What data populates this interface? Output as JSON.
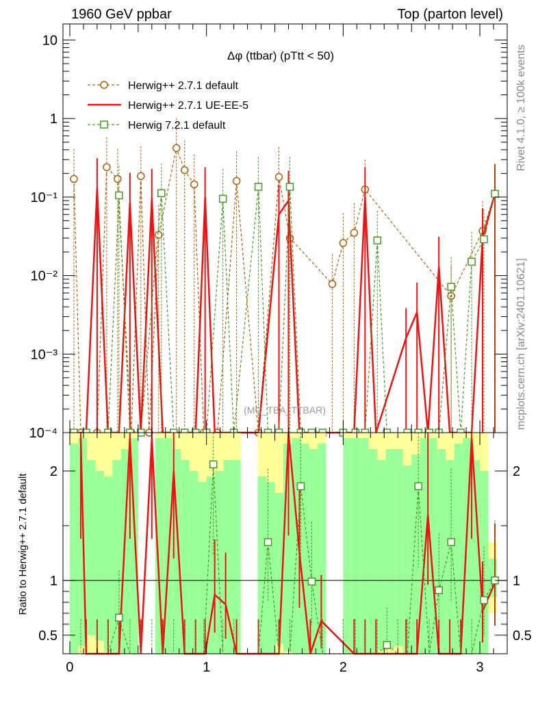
{
  "header": {
    "left": "1960 GeV ppbar",
    "right": "Top (parton level)"
  },
  "side_labels": {
    "rivet": "Rivet 4.1.0, ≥ 100k events",
    "mcplots": "mcplots.cern.ch [arXiv:2401.10621]"
  },
  "chart_data": [
    {
      "type": "line",
      "title": "Δφ (ttbar) (pTtt < 50)",
      "watermark": "(MC_TBA_TTBAR)",
      "yscale": "log",
      "xlim": [
        -0.05,
        3.2
      ],
      "ylim": [
        0.0001,
        16
      ],
      "y_ticks": [
        0.0001,
        0.001,
        0.01,
        0.1,
        1,
        10
      ],
      "y_tick_labels": [
        "10⁻⁴",
        "10⁻³",
        "10⁻²",
        "10⁻¹",
        "1",
        "10"
      ],
      "legend_position": "top-left",
      "series": [
        {
          "name": "Herwig++ 2.7.1 default",
          "color": "#b35900",
          "style": "dashed",
          "marker": "circle",
          "x": [
            0.03,
            0.08,
            0.2,
            0.27,
            0.35,
            0.45,
            0.52,
            0.58,
            0.65,
            0.78,
            0.84,
            0.91,
            0.98,
            1.08,
            1.22,
            1.38,
            1.53,
            1.61,
            1.92,
            2.0,
            2.08,
            2.16,
            2.79,
            3.02,
            3.11
          ],
          "y": [
            0.17,
            0.0001,
            0.0001,
            0.24,
            0.17,
            0.0001,
            0.185,
            0.0001,
            0.033,
            0.42,
            0.22,
            0.145,
            0.0001,
            0.0001,
            0.16,
            0.0001,
            0.18,
            0.03,
            0.0078,
            0.026,
            0.035,
            0.125,
            0.0055,
            0.037,
            0.11
          ]
        },
        {
          "name": "Herwig++ 2.7.1 UE-EE-5",
          "color": "#ee1111",
          "style": "solid",
          "marker": "none",
          "x": [
            0.03,
            0.12,
            0.2,
            0.28,
            0.36,
            0.44,
            0.52,
            0.6,
            0.68,
            0.76,
            0.84,
            0.92,
            0.99,
            1.06,
            1.14,
            1.22,
            1.38,
            1.53,
            1.6,
            1.68,
            1.76,
            1.84,
            2.08,
            2.16,
            2.24,
            2.46,
            2.54,
            2.62,
            2.7,
            2.78,
            2.86,
            2.94,
            3.02,
            3.11
          ],
          "y": [
            0.0001,
            0.0001,
            0.13,
            0.0001,
            0.0001,
            0.085,
            0.0001,
            0.095,
            0.0001,
            0.0001,
            0.0001,
            0.0001,
            0.1,
            0.0001,
            0.0001,
            0.0001,
            0.0001,
            0.06,
            0.09,
            0.0001,
            0.0001,
            0.0001,
            0.0001,
            0.1,
            0.0001,
            0.0016,
            0.0034,
            0.0001,
            0.013,
            0.0001,
            0.0001,
            0.0001,
            0.03,
            0.11
          ]
        },
        {
          "name": "Herwig 7.2.1 default",
          "color": "#449922",
          "style": "dashed",
          "marker": "square",
          "x": [
            0.03,
            0.12,
            0.28,
            0.36,
            0.44,
            0.52,
            0.67,
            0.76,
            0.84,
            0.92,
            1.0,
            1.12,
            1.2,
            1.38,
            1.45,
            1.53,
            1.61,
            1.69,
            1.77,
            1.85,
            2.0,
            2.09,
            2.16,
            2.25,
            2.32,
            2.47,
            2.55,
            2.63,
            2.7,
            2.79,
            2.86,
            2.94,
            3.03,
            3.11
          ],
          "y": [
            0.0001,
            0.0001,
            0.0001,
            0.105,
            0.0001,
            0.0001,
            0.112,
            0.0001,
            0.0001,
            0.0001,
            0.0001,
            0.095,
            0.0001,
            0.135,
            0.0001,
            0.0001,
            0.135,
            0.0001,
            0.0001,
            0.0001,
            0.0001,
            0.0001,
            0.0001,
            0.028,
            0.0001,
            0.0001,
            0.0001,
            0.0001,
            0.0001,
            0.0072,
            0.0001,
            0.015,
            0.029,
            0.11
          ]
        }
      ]
    },
    {
      "type": "line",
      "ylabel": "Ratio to Herwig++ 2.7.1 default",
      "xlim": [
        -0.05,
        3.2
      ],
      "ylim": [
        0.33,
        2.35
      ],
      "x_ticks": [
        0,
        1,
        2,
        3
      ],
      "y_ticks": [
        0.5,
        1,
        2
      ],
      "reference_line": 1,
      "bands": {
        "x_edges": [
          0.0,
          0.0625,
          0.125,
          0.1875,
          0.25,
          0.3125,
          0.375,
          0.4375,
          0.5,
          0.5625,
          0.625,
          0.6875,
          0.75,
          0.8125,
          0.875,
          0.9375,
          1.0,
          1.0625,
          1.125,
          1.1875,
          1.25,
          1.3125,
          1.375,
          1.4375,
          1.5,
          1.5625,
          1.625,
          1.6875,
          1.75,
          1.8125,
          1.875,
          1.9375,
          2.0,
          2.0625,
          2.125,
          2.1875,
          2.25,
          2.3125,
          2.375,
          2.4375,
          2.5,
          2.5625,
          2.625,
          2.6875,
          2.75,
          2.8125,
          2.875,
          2.9375,
          3.0,
          3.0625,
          3.125
        ],
        "inner_hi": [
          2.25,
          2.3,
          2.1,
          2.0,
          1.95,
          2.1,
          2.2,
          2.3,
          0,
          0,
          2.3,
          2.3,
          2.2,
          2.1,
          2.0,
          1.9,
          1.95,
          2.0,
          2.1,
          2.1,
          0,
          0,
          1.95,
          1.9,
          1.8,
          2.25,
          2.3,
          2.25,
          2.2,
          2.25,
          0,
          0,
          2.3,
          2.3,
          2.3,
          2.2,
          2.1,
          2.2,
          2.2,
          2.05,
          2.15,
          2.3,
          2.3,
          2.2,
          2.1,
          2.25,
          2.3,
          2.1,
          2.0,
          1.2,
          0
        ],
        "inner_lo": [
          0.33,
          0.4,
          0.5,
          0.45,
          0.35,
          0.33,
          0.33,
          0.33,
          0,
          0,
          0.33,
          0.33,
          0.33,
          0.33,
          0.33,
          0.33,
          0.33,
          0.33,
          0.33,
          0.33,
          0,
          0,
          0.33,
          0.33,
          0.42,
          0.35,
          0.33,
          0.33,
          0.33,
          0.33,
          0,
          0,
          0.33,
          0.33,
          0.33,
          0.33,
          0.36,
          0.38,
          0.4,
          0.33,
          0.33,
          0.33,
          0.33,
          0.33,
          0.33,
          0.33,
          0.33,
          0.33,
          0.33,
          0.85,
          0
        ],
        "outer_hi": [
          2.35,
          2.35,
          2.35,
          2.35,
          2.35,
          2.35,
          2.35,
          2.35,
          0,
          0,
          2.35,
          2.35,
          2.35,
          2.35,
          2.35,
          2.35,
          2.35,
          2.35,
          2.35,
          2.35,
          0,
          0,
          2.35,
          2.35,
          2.35,
          2.35,
          2.35,
          2.35,
          2.35,
          2.35,
          0,
          0,
          2.35,
          2.35,
          2.35,
          2.35,
          2.35,
          2.35,
          2.35,
          2.35,
          2.35,
          2.35,
          2.35,
          2.35,
          2.35,
          2.35,
          2.35,
          2.35,
          2.35,
          1.35,
          0
        ],
        "outer_lo": [
          0.33,
          0.33,
          0.33,
          0.33,
          0.33,
          0.33,
          0.33,
          0.33,
          0,
          0,
          0.33,
          0.33,
          0.33,
          0.33,
          0.33,
          0.33,
          0.33,
          0.33,
          0.33,
          0.33,
          0,
          0,
          0.33,
          0.33,
          0.33,
          0.33,
          0.33,
          0.33,
          0.33,
          0.33,
          0,
          0,
          0.33,
          0.33,
          0.33,
          0.33,
          0.33,
          0.33,
          0.33,
          0.33,
          0.33,
          0.33,
          0.33,
          0.33,
          0.33,
          0.33,
          0.33,
          0.33,
          0.33,
          0.7,
          0
        ],
        "inner_color": "#99ff99",
        "outer_color": "#ffff99"
      },
      "series": [
        {
          "name": "Herwig++ 2.7.1 UE-EE-5",
          "color": "#ee1111",
          "x": [
            0.08,
            0.12,
            0.2,
            0.28,
            0.36,
            0.44,
            0.52,
            0.6,
            0.68,
            0.76,
            0.84,
            0.92,
            0.99,
            1.06,
            1.14,
            1.22,
            1.38,
            1.53,
            1.6,
            1.68,
            1.76,
            1.84,
            2.08,
            2.16,
            2.24,
            2.46,
            2.54,
            2.62,
            2.7,
            2.78,
            2.86,
            2.94,
            3.02,
            3.11
          ],
          "y": [
            2.3,
            0.33,
            0.33,
            0.33,
            0.33,
            2.3,
            0.33,
            2.3,
            0.33,
            2.0,
            0.33,
            0.33,
            0.33,
            0.87,
            0.78,
            0.33,
            0.33,
            0.33,
            2.35,
            1.25,
            0.33,
            0.63,
            0.33,
            0.33,
            0.33,
            0.33,
            0.33,
            1.6,
            0.33,
            0.33,
            0.33,
            2.3,
            0.72,
            0.98
          ]
        },
        {
          "name": "Herwig 7.2.1 default",
          "color": "#449922",
          "x": [
            0.08,
            0.2,
            0.28,
            0.36,
            0.44,
            0.52,
            0.6,
            0.68,
            0.76,
            0.84,
            0.92,
            0.98,
            1.05,
            1.12,
            1.2,
            1.38,
            1.45,
            1.53,
            1.61,
            1.69,
            1.77,
            1.85,
            2.0,
            2.09,
            2.16,
            2.25,
            2.32,
            2.4,
            2.47,
            2.55,
            2.63,
            2.7,
            2.79,
            2.86,
            2.94,
            3.03,
            3.11
          ],
          "y": [
            0.33,
            0.33,
            0.33,
            0.66,
            0.33,
            0.33,
            0.33,
            0.33,
            0.33,
            0.33,
            0.33,
            0.33,
            2.06,
            0.33,
            0.33,
            0.33,
            1.35,
            0.33,
            0.33,
            1.86,
            0.99,
            0.33,
            0.33,
            0.33,
            0.33,
            0.33,
            0.41,
            0.33,
            0.33,
            1.86,
            0.33,
            0.91,
            1.35,
            0.33,
            0.33,
            0.82,
            1.0
          ]
        }
      ]
    }
  ]
}
